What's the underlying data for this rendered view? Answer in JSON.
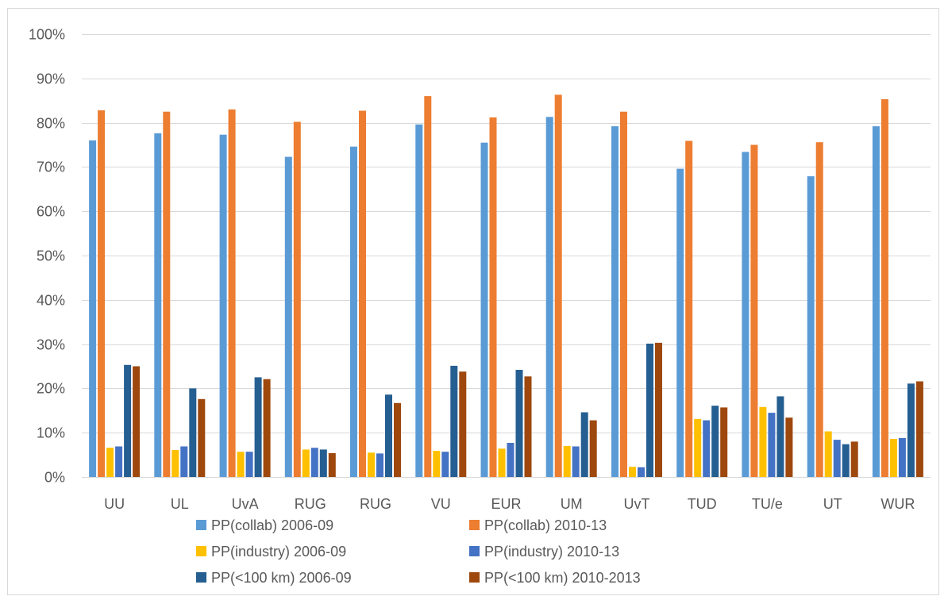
{
  "chart_data": {
    "type": "bar",
    "categories": [
      "UU",
      "UL",
      "UvA",
      "RUG",
      "RUG",
      "VU",
      "EUR",
      "UM",
      "UvT",
      "TUD",
      "TU/e",
      "UT",
      "WUR"
    ],
    "series": [
      {
        "name": "PP(collab) 2006-09",
        "color": "#5b9bd5",
        "values": [
          76.0,
          77.6,
          77.3,
          72.3,
          74.6,
          79.6,
          75.5,
          81.3,
          79.2,
          69.6,
          73.4,
          67.9,
          79.2
        ]
      },
      {
        "name": "PP(collab) 2010-13",
        "color": "#ed7d31",
        "values": [
          82.8,
          82.5,
          83.0,
          80.2,
          82.7,
          86.0,
          81.2,
          86.3,
          82.5,
          75.9,
          75.0,
          75.6,
          85.3
        ]
      },
      {
        "name": "PP(industry) 2006-09",
        "color": "#ffc000",
        "values": [
          6.6,
          6.1,
          5.7,
          6.2,
          5.5,
          5.9,
          6.4,
          7.0,
          2.3,
          13.1,
          15.8,
          10.3,
          8.6
        ]
      },
      {
        "name": "PP(industry) 2010-13",
        "color": "#4472c4",
        "values": [
          6.9,
          6.9,
          5.7,
          6.6,
          5.3,
          5.7,
          7.7,
          6.9,
          2.2,
          12.8,
          14.5,
          8.4,
          8.8
        ]
      },
      {
        "name": "PP(<100 km) 2006-09",
        "color": "#255e91",
        "values": [
          25.3,
          20.0,
          22.5,
          6.2,
          18.6,
          25.1,
          24.2,
          14.6,
          30.1,
          16.1,
          18.2,
          7.4,
          21.1
        ]
      },
      {
        "name": "PP(<100 km) 2010-2013",
        "color": "#9e480e",
        "values": [
          25.0,
          17.6,
          22.1,
          5.4,
          16.7,
          23.8,
          22.7,
          12.8,
          30.3,
          15.7,
          13.4,
          8.0,
          21.6
        ]
      }
    ],
    "ylim": [
      0,
      100
    ],
    "yticks": [
      "0%",
      "10%",
      "20%",
      "30%",
      "40%",
      "50%",
      "60%",
      "70%",
      "80%",
      "90%",
      "100%"
    ],
    "grid": true,
    "legend_position": "bottom"
  }
}
